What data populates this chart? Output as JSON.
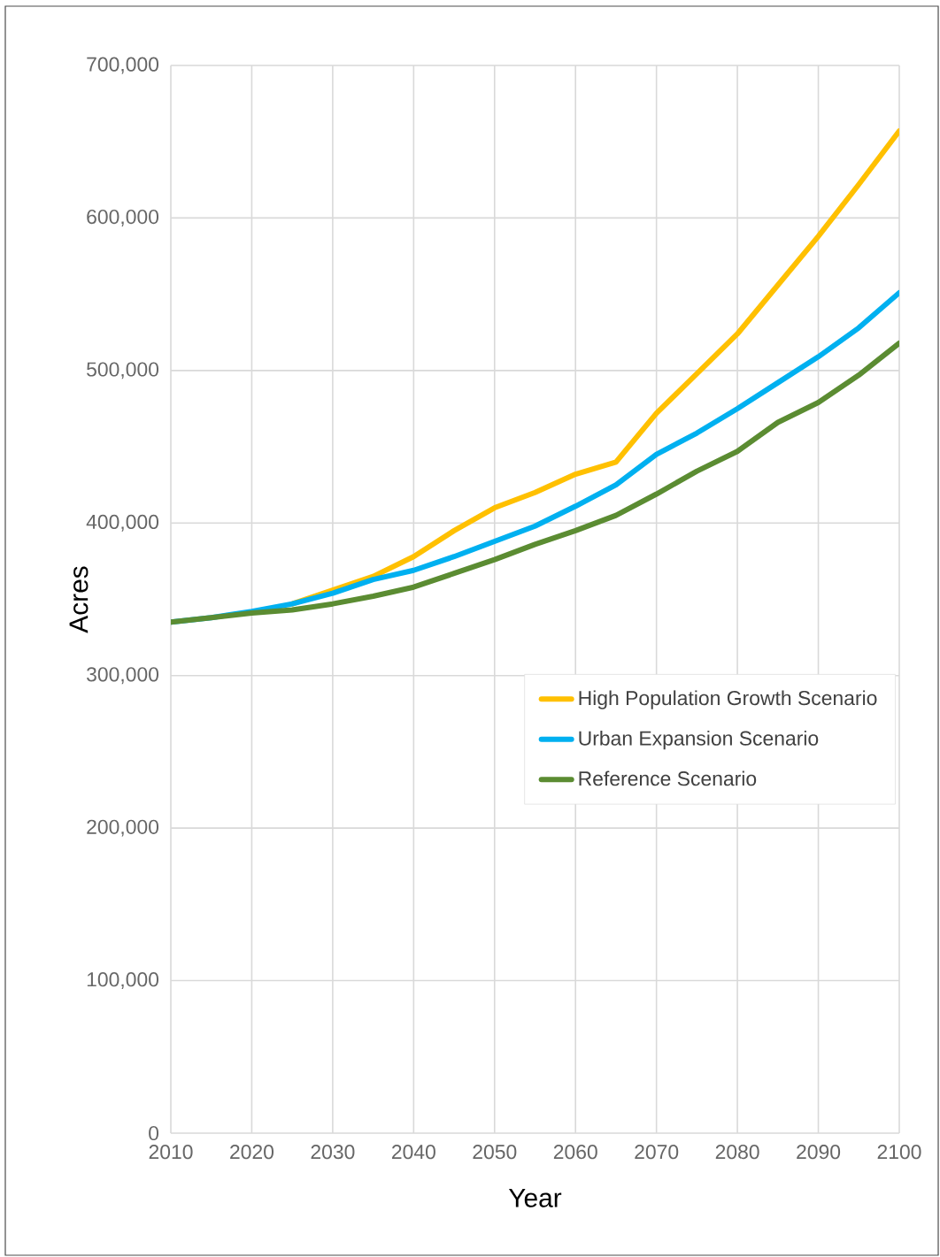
{
  "chart_data": {
    "type": "line",
    "xlabel": "Year",
    "ylabel": "Acres",
    "x": [
      2010,
      2015,
      2020,
      2025,
      2030,
      2035,
      2040,
      2045,
      2050,
      2055,
      2060,
      2065,
      2070,
      2075,
      2080,
      2085,
      2090,
      2095,
      2100
    ],
    "series": [
      {
        "name": "High Population Growth Scenario",
        "color": "#ffc000",
        "values": [
          null,
          null,
          null,
          347000,
          356000,
          365000,
          378000,
          395000,
          410000,
          420000,
          432000,
          440000,
          472000,
          498000,
          524000,
          556000,
          588000,
          622000,
          657000
        ]
      },
      {
        "name": "Urban Expansion Scenario",
        "color": "#00b0f0",
        "values": [
          335000,
          338000,
          342000,
          347000,
          354000,
          363000,
          369000,
          378000,
          388000,
          398000,
          411000,
          425000,
          445000,
          459000,
          475000,
          492000,
          509000,
          528000,
          551000
        ]
      },
      {
        "name": "Reference Scenario",
        "color": "#5b8c32",
        "values": [
          335000,
          338000,
          341000,
          343000,
          347000,
          352000,
          358000,
          367000,
          376000,
          386000,
          395000,
          405000,
          419000,
          434000,
          447000,
          466000,
          479000,
          497000,
          518000
        ]
      }
    ],
    "xlim": [
      2010,
      2100
    ],
    "ylim": [
      0,
      700000
    ],
    "xticks": [
      2010,
      2020,
      2030,
      2040,
      2050,
      2060,
      2070,
      2080,
      2090,
      2100
    ],
    "yticks": [
      0,
      {
        "value": 100000,
        "label": "100,000"
      },
      {
        "value": 200000,
        "label": "200,000"
      },
      {
        "value": 300000,
        "label": "300,000"
      },
      {
        "value": 400000,
        "label": "400,000"
      },
      {
        "value": 500000,
        "label": "500,000"
      },
      {
        "value": 600000,
        "label": "600,000"
      },
      {
        "value": 700000,
        "label": "700,000"
      }
    ],
    "grid": true,
    "legend": "right",
    "marker": "none",
    "line_style": "solid"
  }
}
